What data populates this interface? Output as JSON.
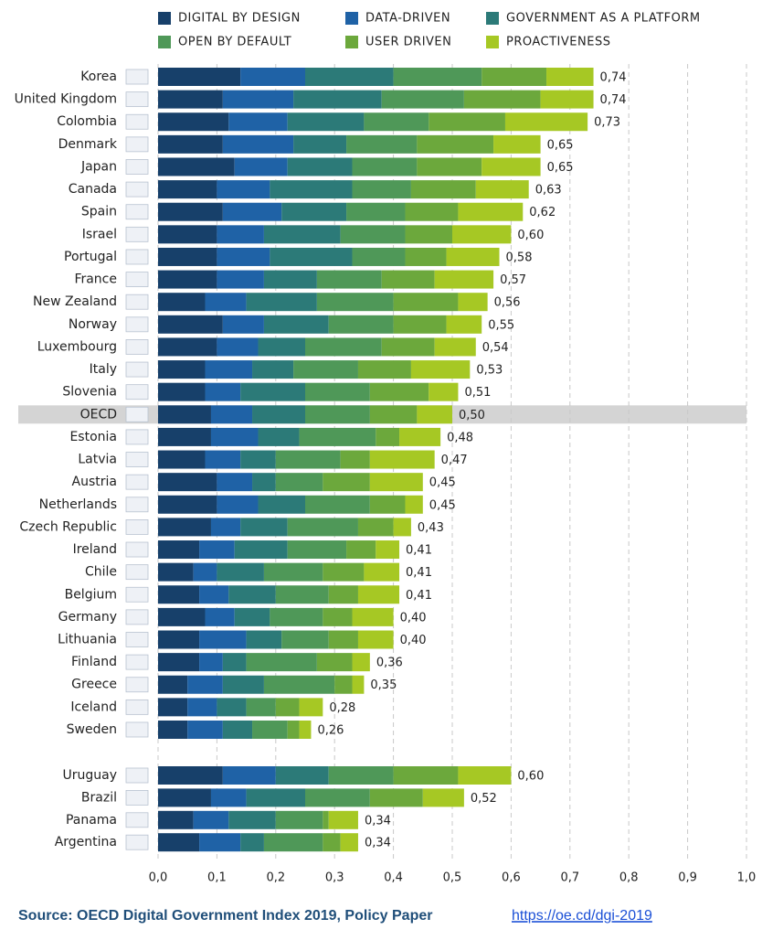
{
  "chart_data": {
    "type": "stacked-bar-horizontal",
    "categories": [
      "Korea",
      "United Kingdom",
      "Colombia",
      "Denmark",
      "Japan",
      "Canada",
      "Spain",
      "Israel",
      "Portugal",
      "France",
      "New Zealand",
      "Norway",
      "Luxembourg",
      "Italy",
      "Slovenia",
      "OECD",
      "Estonia",
      "Latvia",
      "Austria",
      "Netherlands",
      "Czech Republic",
      "Ireland",
      "Chile",
      "Belgium",
      "Germany",
      "Lithuania",
      "Finland",
      "Greece",
      "Iceland",
      "Sweden",
      "Uruguay",
      "Brazil",
      "Panama",
      "Argentina"
    ],
    "series": [
      {
        "name": "DIGITAL BY DESIGN",
        "color": "#17406a",
        "values": [
          0.14,
          0.11,
          0.12,
          0.11,
          0.13,
          0.1,
          0.11,
          0.1,
          0.1,
          0.1,
          0.08,
          0.11,
          0.1,
          0.08,
          0.08,
          0.09,
          0.09,
          0.08,
          0.1,
          0.1,
          0.09,
          0.07,
          0.06,
          0.07,
          0.08,
          0.07,
          0.07,
          0.05,
          0.05,
          0.05,
          0.11,
          0.09,
          0.06,
          0.07
        ]
      },
      {
        "name": "DATA-DRIVEN",
        "color": "#1f62a6",
        "values": [
          0.11,
          0.12,
          0.1,
          0.12,
          0.09,
          0.09,
          0.1,
          0.08,
          0.09,
          0.08,
          0.07,
          0.07,
          0.07,
          0.08,
          0.06,
          0.07,
          0.08,
          0.06,
          0.06,
          0.07,
          0.05,
          0.06,
          0.04,
          0.05,
          0.05,
          0.08,
          0.04,
          0.06,
          0.05,
          0.06,
          0.09,
          0.06,
          0.06,
          0.07
        ]
      },
      {
        "name": "GOVERNMENT AS A PLATFORM",
        "color": "#2c7a78",
        "values": [
          0.15,
          0.15,
          0.13,
          0.09,
          0.11,
          0.14,
          0.11,
          0.13,
          0.14,
          0.09,
          0.12,
          0.11,
          0.08,
          0.07,
          0.11,
          0.09,
          0.07,
          0.06,
          0.04,
          0.08,
          0.08,
          0.09,
          0.08,
          0.08,
          0.06,
          0.06,
          0.04,
          0.07,
          0.05,
          0.05,
          0.09,
          0.1,
          0.08,
          0.04
        ]
      },
      {
        "name": "OPEN BY DEFAULT",
        "color": "#4f9858",
        "values": [
          0.15,
          0.14,
          0.11,
          0.12,
          0.11,
          0.1,
          0.1,
          0.11,
          0.09,
          0.11,
          0.13,
          0.11,
          0.13,
          0.11,
          0.11,
          0.11,
          0.13,
          0.11,
          0.08,
          0.11,
          0.12,
          0.1,
          0.1,
          0.09,
          0.09,
          0.08,
          0.12,
          0.12,
          0.05,
          0.06,
          0.11,
          0.11,
          0.08,
          0.1
        ]
      },
      {
        "name": "USER DRIVEN",
        "color": "#6ca83c",
        "values": [
          0.11,
          0.13,
          0.13,
          0.13,
          0.11,
          0.11,
          0.09,
          0.08,
          0.07,
          0.09,
          0.11,
          0.09,
          0.09,
          0.09,
          0.1,
          0.08,
          0.04,
          0.05,
          0.08,
          0.06,
          0.06,
          0.05,
          0.07,
          0.05,
          0.05,
          0.05,
          0.06,
          0.03,
          0.04,
          0.02,
          0.11,
          0.09,
          0.01,
          0.03
        ]
      },
      {
        "name": "PROACTIVENESS",
        "color": "#a6c824",
        "values": [
          0.08,
          0.09,
          0.14,
          0.08,
          0.1,
          0.09,
          0.11,
          0.1,
          0.09,
          0.1,
          0.05,
          0.06,
          0.07,
          0.1,
          0.05,
          0.06,
          0.07,
          0.11,
          0.09,
          0.03,
          0.03,
          0.04,
          0.06,
          0.07,
          0.07,
          0.06,
          0.03,
          0.02,
          0.04,
          0.02,
          0.09,
          0.07,
          0.05,
          0.03
        ]
      }
    ],
    "totals": [
      0.74,
      0.74,
      0.73,
      0.65,
      0.65,
      0.63,
      0.62,
      0.6,
      0.58,
      0.57,
      0.56,
      0.55,
      0.54,
      0.53,
      0.51,
      0.5,
      0.48,
      0.47,
      0.45,
      0.45,
      0.43,
      0.41,
      0.41,
      0.41,
      0.4,
      0.4,
      0.36,
      0.35,
      0.28,
      0.26,
      0.6,
      0.52,
      0.34,
      0.34
    ],
    "value_labels": [
      "0,74",
      "0,74",
      "0,73",
      "0,65",
      "0,65",
      "0,63",
      "0,62",
      "0,60",
      "0,58",
      "0,57",
      "0,56",
      "0,55",
      "0,54",
      "0,53",
      "0,51",
      "0,50",
      "0,48",
      "0,47",
      "0,45",
      "0,45",
      "0,43",
      "0,41",
      "0,41",
      "0,41",
      "0,40",
      "0,40",
      "0,36",
      "0,35",
      "0,28",
      "0,26",
      "0,60",
      "0,52",
      "0,34",
      "0,34"
    ],
    "xlim": [
      0,
      1.0
    ],
    "xticks": [
      {
        "value": 0,
        "label": "0,0"
      },
      {
        "value": 0.1,
        "label": "0,1"
      },
      {
        "value": 0.2,
        "label": "0,2"
      },
      {
        "value": 0.3,
        "label": "0,3"
      },
      {
        "value": 0.4,
        "label": "0,4"
      },
      {
        "value": 0.5,
        "label": "0,5"
      },
      {
        "value": 0.6,
        "label": "0,6"
      },
      {
        "value": 0.7,
        "label": "0,7"
      },
      {
        "value": 0.8,
        "label": "0,8"
      },
      {
        "value": 0.9,
        "label": "0,9"
      },
      {
        "value": 1.0,
        "label": "1,0"
      }
    ],
    "grid": true,
    "source": "Source: OECD Digital Government Index 2019, Policy Paper",
    "link": "https://oe.cd/dgi-2019"
  }
}
